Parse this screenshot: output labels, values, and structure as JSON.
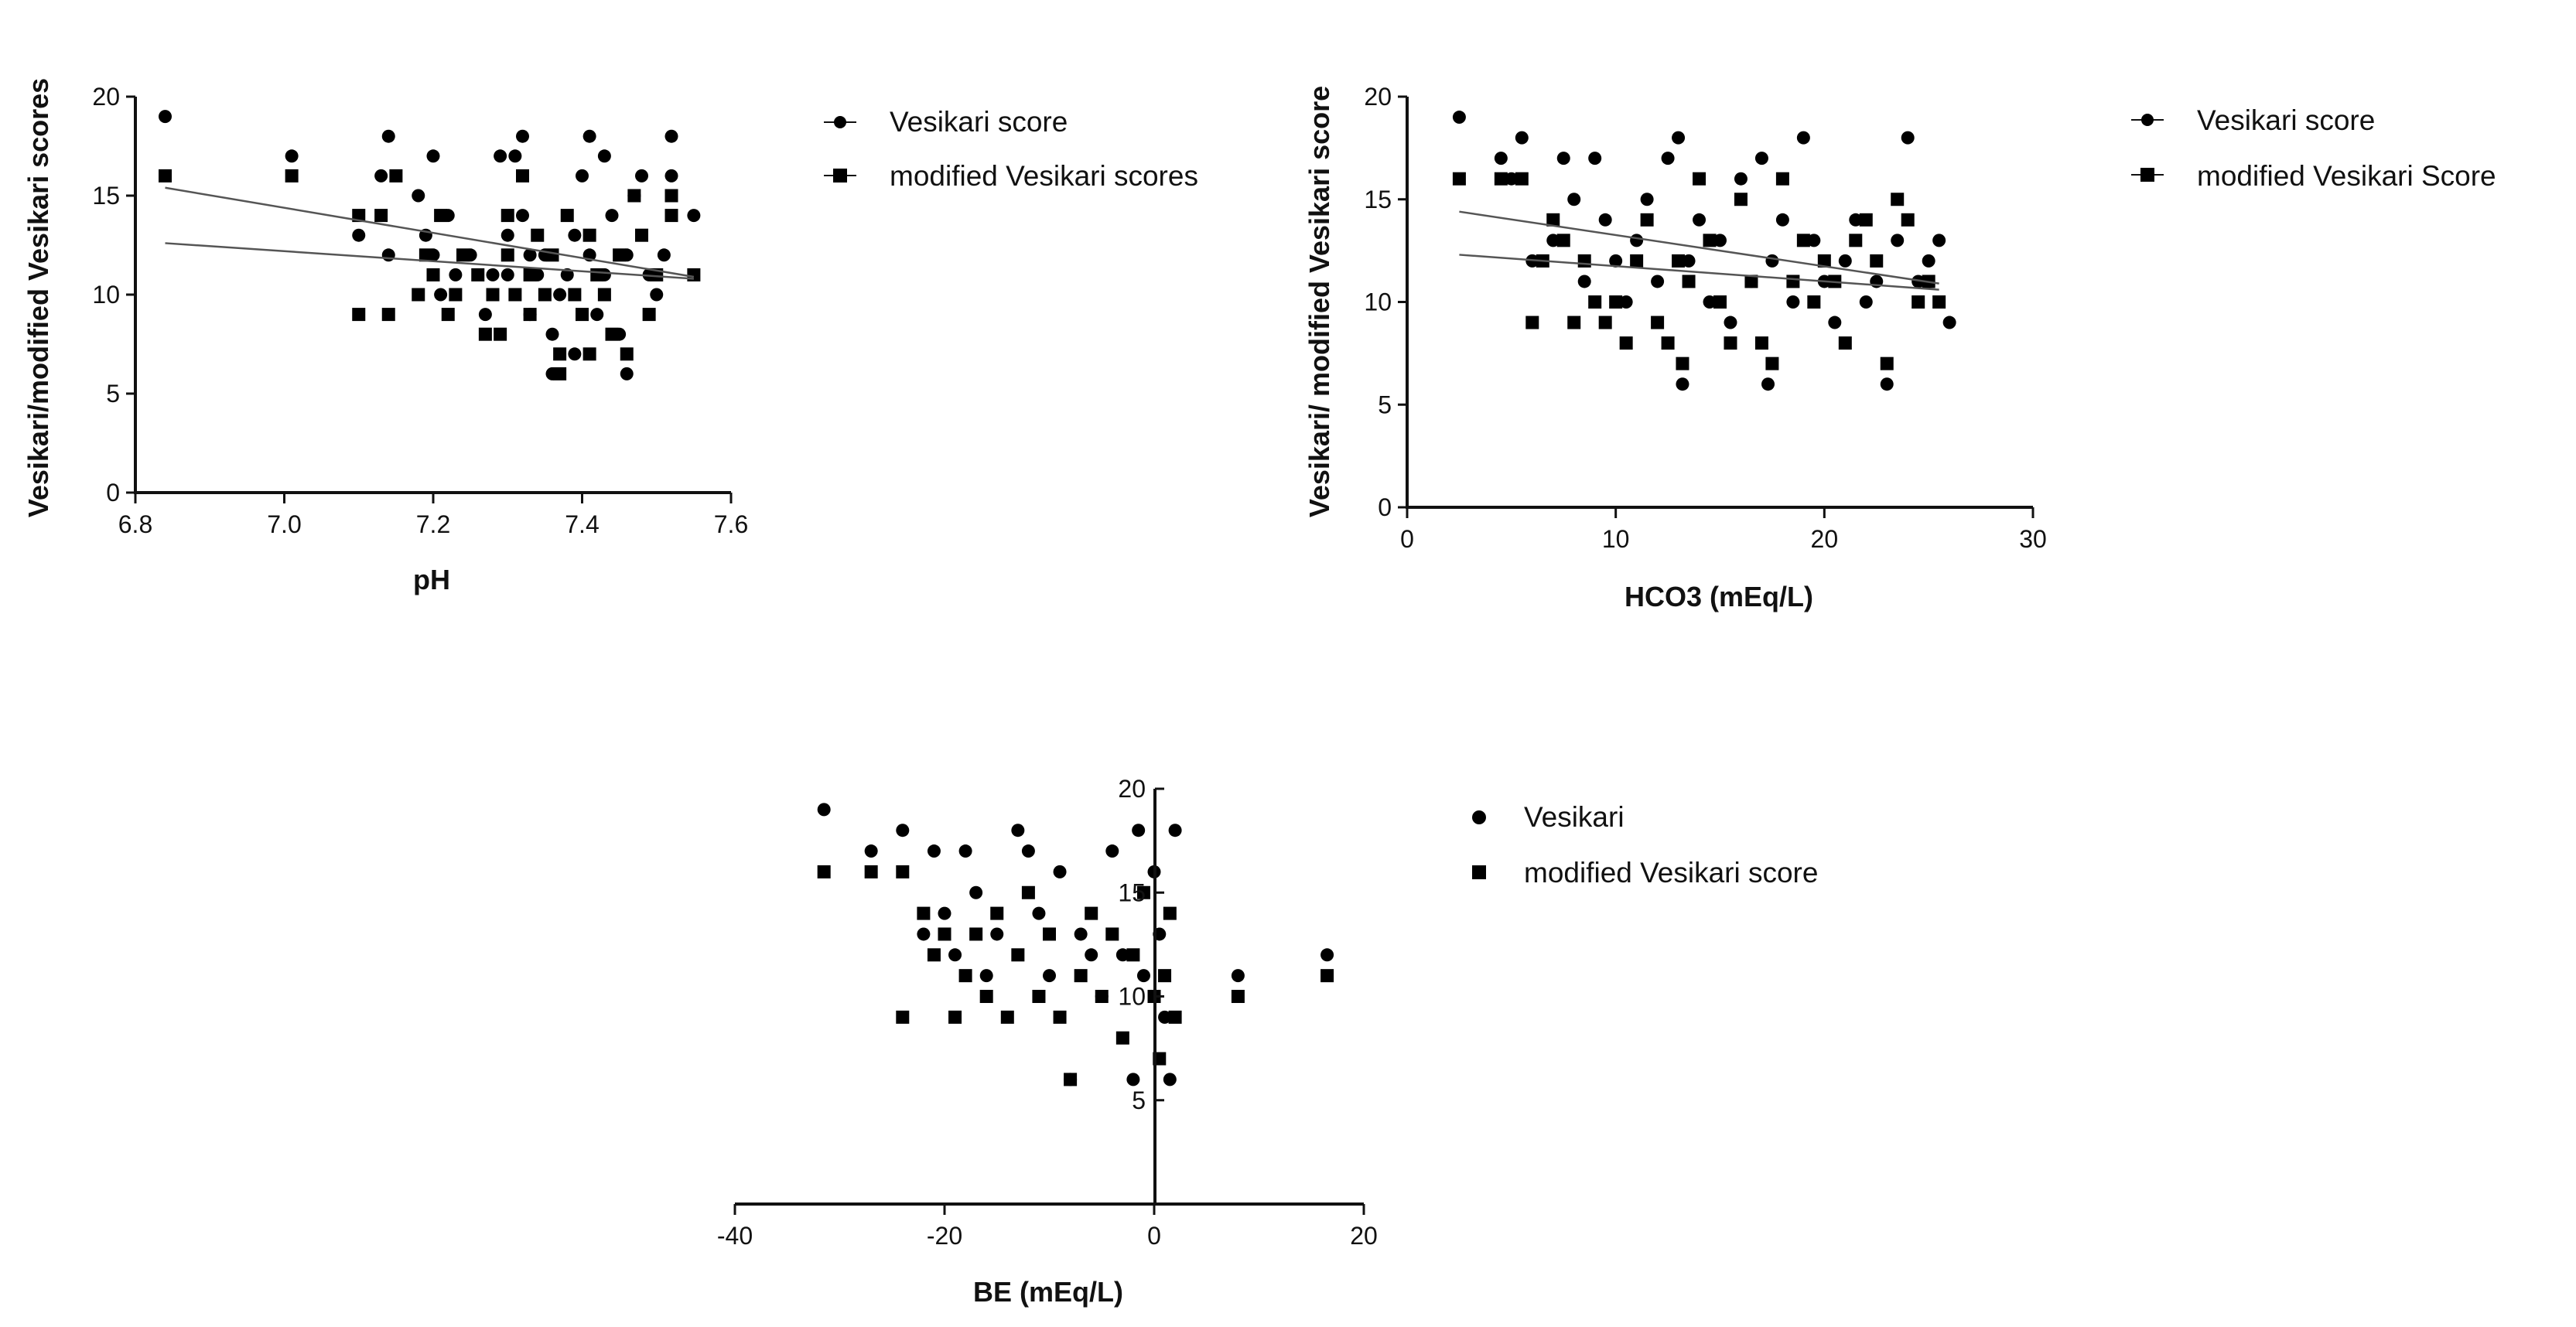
{
  "chart_data": [
    {
      "type": "scatter",
      "xlabel": "pH",
      "ylabel": "Vesikari/modified Vesikari scores",
      "xlim": [
        6.8,
        7.6
      ],
      "ylim": [
        0,
        20
      ],
      "xticks": [
        "6.8",
        "7.0",
        "7.2",
        "7.4",
        "7.6"
      ],
      "yticks": [
        "0",
        "5",
        "10",
        "15",
        "20"
      ],
      "legend_position": "right",
      "series": [
        {
          "name": "Vesikari score",
          "marker": "circle",
          "points": [
            [
              6.84,
              19
            ],
            [
              7.01,
              17
            ],
            [
              7.1,
              13
            ],
            [
              7.13,
              16
            ],
            [
              7.14,
              18
            ],
            [
              7.14,
              12
            ],
            [
              7.18,
              15
            ],
            [
              7.19,
              13
            ],
            [
              7.2,
              17
            ],
            [
              7.2,
              12
            ],
            [
              7.21,
              10
            ],
            [
              7.22,
              14
            ],
            [
              7.23,
              11
            ],
            [
              7.25,
              12
            ],
            [
              7.27,
              9
            ],
            [
              7.28,
              11
            ],
            [
              7.29,
              17
            ],
            [
              7.3,
              13
            ],
            [
              7.3,
              11
            ],
            [
              7.31,
              17
            ],
            [
              7.32,
              18
            ],
            [
              7.32,
              14
            ],
            [
              7.33,
              12
            ],
            [
              7.33,
              9
            ],
            [
              7.34,
              11
            ],
            [
              7.35,
              12
            ],
            [
              7.36,
              8
            ],
            [
              7.36,
              6
            ],
            [
              7.37,
              10
            ],
            [
              7.38,
              11
            ],
            [
              7.39,
              13
            ],
            [
              7.39,
              7
            ],
            [
              7.4,
              16
            ],
            [
              7.41,
              18
            ],
            [
              7.41,
              12
            ],
            [
              7.42,
              9
            ],
            [
              7.43,
              17
            ],
            [
              7.43,
              11
            ],
            [
              7.44,
              14
            ],
            [
              7.45,
              8
            ],
            [
              7.46,
              6
            ],
            [
              7.46,
              12
            ],
            [
              7.47,
              15
            ],
            [
              7.48,
              16
            ],
            [
              7.49,
              11
            ],
            [
              7.5,
              10
            ],
            [
              7.51,
              12
            ],
            [
              7.52,
              18
            ],
            [
              7.52,
              16
            ],
            [
              7.55,
              14
            ]
          ]
        },
        {
          "name": "modified Vesikari scores",
          "marker": "square",
          "points": [
            [
              6.84,
              16
            ],
            [
              7.01,
              16
            ],
            [
              7.1,
              14
            ],
            [
              7.1,
              9
            ],
            [
              7.13,
              14
            ],
            [
              7.14,
              9
            ],
            [
              7.15,
              16
            ],
            [
              7.18,
              10
            ],
            [
              7.19,
              12
            ],
            [
              7.2,
              11
            ],
            [
              7.21,
              14
            ],
            [
              7.22,
              9
            ],
            [
              7.23,
              10
            ],
            [
              7.24,
              12
            ],
            [
              7.26,
              11
            ],
            [
              7.27,
              8
            ],
            [
              7.28,
              10
            ],
            [
              7.29,
              8
            ],
            [
              7.3,
              14
            ],
            [
              7.3,
              12
            ],
            [
              7.31,
              10
            ],
            [
              7.32,
              16
            ],
            [
              7.33,
              11
            ],
            [
              7.33,
              9
            ],
            [
              7.34,
              13
            ],
            [
              7.35,
              10
            ],
            [
              7.36,
              12
            ],
            [
              7.37,
              7
            ],
            [
              7.37,
              6
            ],
            [
              7.38,
              14
            ],
            [
              7.39,
              10
            ],
            [
              7.4,
              9
            ],
            [
              7.41,
              13
            ],
            [
              7.41,
              7
            ],
            [
              7.42,
              11
            ],
            [
              7.43,
              10
            ],
            [
              7.44,
              8
            ],
            [
              7.45,
              12
            ],
            [
              7.46,
              7
            ],
            [
              7.47,
              15
            ],
            [
              7.48,
              13
            ],
            [
              7.49,
              9
            ],
            [
              7.5,
              11
            ],
            [
              7.52,
              14
            ],
            [
              7.52,
              15
            ],
            [
              7.55,
              11
            ]
          ]
        }
      ],
      "trendlines": [
        {
          "series": "modified Vesikari scores",
          "x": [
            6.84,
            7.55
          ],
          "y": [
            15.4,
            10.9
          ]
        },
        {
          "series": "Vesikari score",
          "x": [
            6.84,
            7.55
          ],
          "y": [
            12.6,
            10.8
          ]
        }
      ]
    },
    {
      "type": "scatter",
      "xlabel": "HCO3 (mEq/L)",
      "ylabel": "Vesikari/ modified Vesikari score",
      "xlim": [
        0,
        30
      ],
      "ylim": [
        0,
        20
      ],
      "xticks": [
        "0",
        "10",
        "20",
        "30"
      ],
      "yticks": [
        "0",
        "5",
        "10",
        "15",
        "20"
      ],
      "legend_position": "right",
      "series": [
        {
          "name": "Vesikari score",
          "marker": "circle",
          "points": [
            [
              2.5,
              19
            ],
            [
              4.5,
              17
            ],
            [
              5.0,
              16
            ],
            [
              5.5,
              18
            ],
            [
              6.0,
              12
            ],
            [
              7.0,
              13
            ],
            [
              7.5,
              17
            ],
            [
              8.0,
              15
            ],
            [
              8.5,
              11
            ],
            [
              9.0,
              17
            ],
            [
              9.5,
              14
            ],
            [
              10.0,
              12
            ],
            [
              10.5,
              10
            ],
            [
              11.0,
              13
            ],
            [
              11.5,
              15
            ],
            [
              12.0,
              11
            ],
            [
              12.5,
              17
            ],
            [
              13.0,
              18
            ],
            [
              13.2,
              6
            ],
            [
              13.5,
              12
            ],
            [
              14.0,
              14
            ],
            [
              14.5,
              10
            ],
            [
              15.0,
              13
            ],
            [
              15.5,
              9
            ],
            [
              16.0,
              16
            ],
            [
              16.5,
              11
            ],
            [
              17.0,
              17
            ],
            [
              17.3,
              6
            ],
            [
              17.5,
              12
            ],
            [
              18.0,
              14
            ],
            [
              18.5,
              10
            ],
            [
              19.0,
              18
            ],
            [
              19.5,
              13
            ],
            [
              20.0,
              11
            ],
            [
              20.5,
              9
            ],
            [
              21.0,
              12
            ],
            [
              21.5,
              14
            ],
            [
              22.0,
              10
            ],
            [
              22.5,
              11
            ],
            [
              23.0,
              6
            ],
            [
              23.5,
              13
            ],
            [
              24.0,
              18
            ],
            [
              24.5,
              11
            ],
            [
              25.0,
              12
            ],
            [
              25.5,
              13
            ],
            [
              26.0,
              9
            ]
          ]
        },
        {
          "name": "modified Vesikari Score",
          "marker": "square",
          "points": [
            [
              2.5,
              16
            ],
            [
              4.5,
              16
            ],
            [
              5.5,
              16
            ],
            [
              6.0,
              9
            ],
            [
              6.5,
              12
            ],
            [
              7.0,
              14
            ],
            [
              7.5,
              13
            ],
            [
              8.0,
              9
            ],
            [
              8.5,
              12
            ],
            [
              9.0,
              10
            ],
            [
              9.5,
              9
            ],
            [
              10.0,
              10
            ],
            [
              10.5,
              8
            ],
            [
              11.0,
              12
            ],
            [
              11.5,
              14
            ],
            [
              12.0,
              9
            ],
            [
              12.5,
              8
            ],
            [
              13.0,
              12
            ],
            [
              13.2,
              7
            ],
            [
              13.5,
              11
            ],
            [
              14.0,
              16
            ],
            [
              14.5,
              13
            ],
            [
              15.0,
              10
            ],
            [
              15.5,
              8
            ],
            [
              16.0,
              15
            ],
            [
              16.5,
              11
            ],
            [
              17.0,
              8
            ],
            [
              17.5,
              7
            ],
            [
              18.0,
              16
            ],
            [
              18.5,
              11
            ],
            [
              19.0,
              13
            ],
            [
              19.5,
              10
            ],
            [
              20.0,
              12
            ],
            [
              20.5,
              11
            ],
            [
              21.0,
              8
            ],
            [
              21.5,
              13
            ],
            [
              22.0,
              14
            ],
            [
              22.5,
              12
            ],
            [
              23.0,
              7
            ],
            [
              23.5,
              15
            ],
            [
              24.0,
              14
            ],
            [
              24.5,
              10
            ],
            [
              25.0,
              11
            ],
            [
              25.5,
              10
            ]
          ]
        }
      ],
      "trendlines": [
        {
          "series": "modified Vesikari Score",
          "x": [
            2.5,
            25.5
          ],
          "y": [
            14.4,
            10.9
          ]
        },
        {
          "series": "Vesikari score",
          "x": [
            2.5,
            25.5
          ],
          "y": [
            12.3,
            10.6
          ]
        }
      ]
    },
    {
      "type": "scatter",
      "xlabel": "BE (mEq/L)",
      "ylabel": "",
      "xlim": [
        -40,
        20
      ],
      "ylim": [
        0,
        20
      ],
      "xticks": [
        "-40",
        "-20",
        "0",
        "20"
      ],
      "yticks": [
        "5",
        "10",
        "15",
        "20"
      ],
      "legend_position": "right",
      "series": [
        {
          "name": "Vesikari",
          "marker": "circle",
          "points": [
            [
              -31.5,
              19
            ],
            [
              -27,
              17
            ],
            [
              -24,
              18
            ],
            [
              -22,
              13
            ],
            [
              -21,
              17
            ],
            [
              -20,
              14
            ],
            [
              -19,
              12
            ],
            [
              -18,
              17
            ],
            [
              -17,
              15
            ],
            [
              -16,
              11
            ],
            [
              -15,
              13
            ],
            [
              -13,
              18
            ],
            [
              -12,
              17
            ],
            [
              -11,
              14
            ],
            [
              -10,
              11
            ],
            [
              -9,
              16
            ],
            [
              -8,
              6
            ],
            [
              -7,
              13
            ],
            [
              -6,
              12
            ],
            [
              -5,
              10
            ],
            [
              -4,
              17
            ],
            [
              -3,
              12
            ],
            [
              -2,
              6
            ],
            [
              -1.5,
              18
            ],
            [
              -1,
              11
            ],
            [
              0,
              16
            ],
            [
              0.5,
              13
            ],
            [
              1,
              9
            ],
            [
              1.5,
              6
            ],
            [
              2,
              18
            ],
            [
              8,
              11
            ],
            [
              16.5,
              12
            ]
          ]
        },
        {
          "name": "modified Vesikari score",
          "marker": "square",
          "points": [
            [
              -31.5,
              16
            ],
            [
              -27,
              16
            ],
            [
              -24,
              16
            ],
            [
              -24,
              9
            ],
            [
              -22,
              14
            ],
            [
              -21,
              12
            ],
            [
              -20,
              13
            ],
            [
              -19,
              9
            ],
            [
              -18,
              11
            ],
            [
              -17,
              13
            ],
            [
              -16,
              10
            ],
            [
              -15,
              14
            ],
            [
              -14,
              9
            ],
            [
              -13,
              12
            ],
            [
              -12,
              15
            ],
            [
              -11,
              10
            ],
            [
              -10,
              13
            ],
            [
              -9,
              9
            ],
            [
              -8,
              6
            ],
            [
              -7,
              11
            ],
            [
              -6,
              14
            ],
            [
              -5,
              10
            ],
            [
              -4,
              13
            ],
            [
              -3,
              8
            ],
            [
              -2,
              12
            ],
            [
              -1,
              15
            ],
            [
              0,
              10
            ],
            [
              0.5,
              7
            ],
            [
              1,
              11
            ],
            [
              1.5,
              14
            ],
            [
              2,
              9
            ],
            [
              8,
              10
            ],
            [
              16.5,
              11
            ]
          ]
        }
      ]
    }
  ]
}
